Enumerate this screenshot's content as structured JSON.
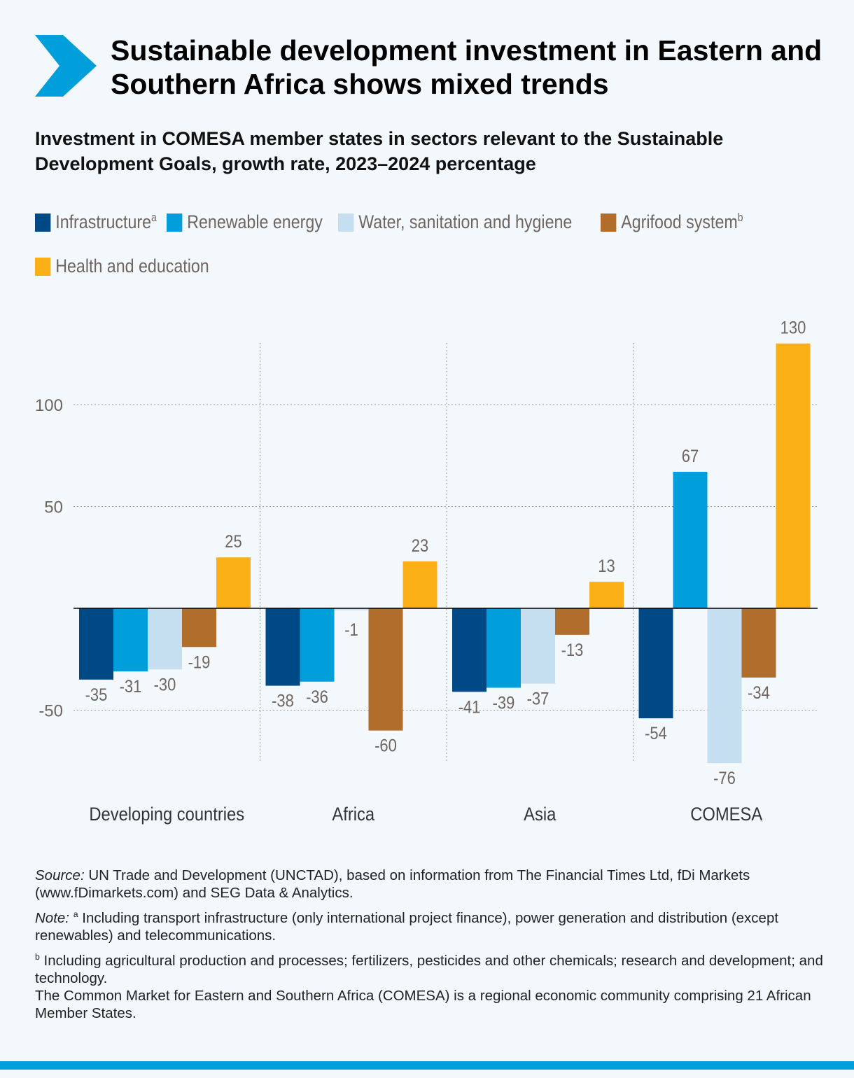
{
  "header": {
    "title": "Sustainable development investment in Eastern and Southern Africa shows mixed trends",
    "subtitle": "Investment in COMESA member states in sectors relevant to the Sustainable Development Goals, growth rate, 2023–2024 percentage",
    "icon": "chevron-right-icon",
    "accent": "#009edb"
  },
  "chart_data": {
    "type": "bar",
    "title": "",
    "xlabel": "",
    "ylabel": "",
    "ylim": [
      -80,
      130
    ],
    "yticks": [
      -50,
      50,
      100
    ],
    "grid": true,
    "legend_position": "top",
    "categories": [
      "Developing countries",
      "Africa",
      "Asia",
      "COMESA"
    ],
    "series": [
      {
        "name": "Infrastructure",
        "sup": "a",
        "color": "#004987",
        "values": [
          -35,
          -38,
          -41,
          -54
        ]
      },
      {
        "name": "Renewable energy",
        "sup": "",
        "color": "#009edb",
        "values": [
          -31,
          -36,
          -39,
          67
        ]
      },
      {
        "name": "Water, sanitation and hygiene",
        "sup": "",
        "color": "#c5dff0",
        "values": [
          -30,
          -1,
          -37,
          -76
        ]
      },
      {
        "name": "Agrifood system",
        "sup": "b",
        "color": "#b06d2b",
        "values": [
          -19,
          -60,
          -13,
          -34
        ]
      },
      {
        "name": "Health and education",
        "sup": "",
        "color": "#fbaf17",
        "values": [
          25,
          23,
          13,
          130
        ]
      }
    ]
  },
  "notes": {
    "source_label": "Source:",
    "source": " UN Trade and Development (UNCTAD), based on information from The Financial Times Ltd, fDi Markets (www.fDimarkets.com) and SEG Data & Analytics.",
    "note_label": "Note:",
    "note_a_sup": "a",
    "note_a": " Including transport infrastructure (only international project finance), power generation and distribution (except renewables) and telecommunications.",
    "note_b_sup": "b",
    "note_b": " Including agricultural production and processes; fertilizers, pesticides and other chemicals; research and development; and technology.",
    "comesa": "The Common Market for Eastern and Southern Africa (COMESA) is a regional economic community comprising 21 African Member States."
  }
}
